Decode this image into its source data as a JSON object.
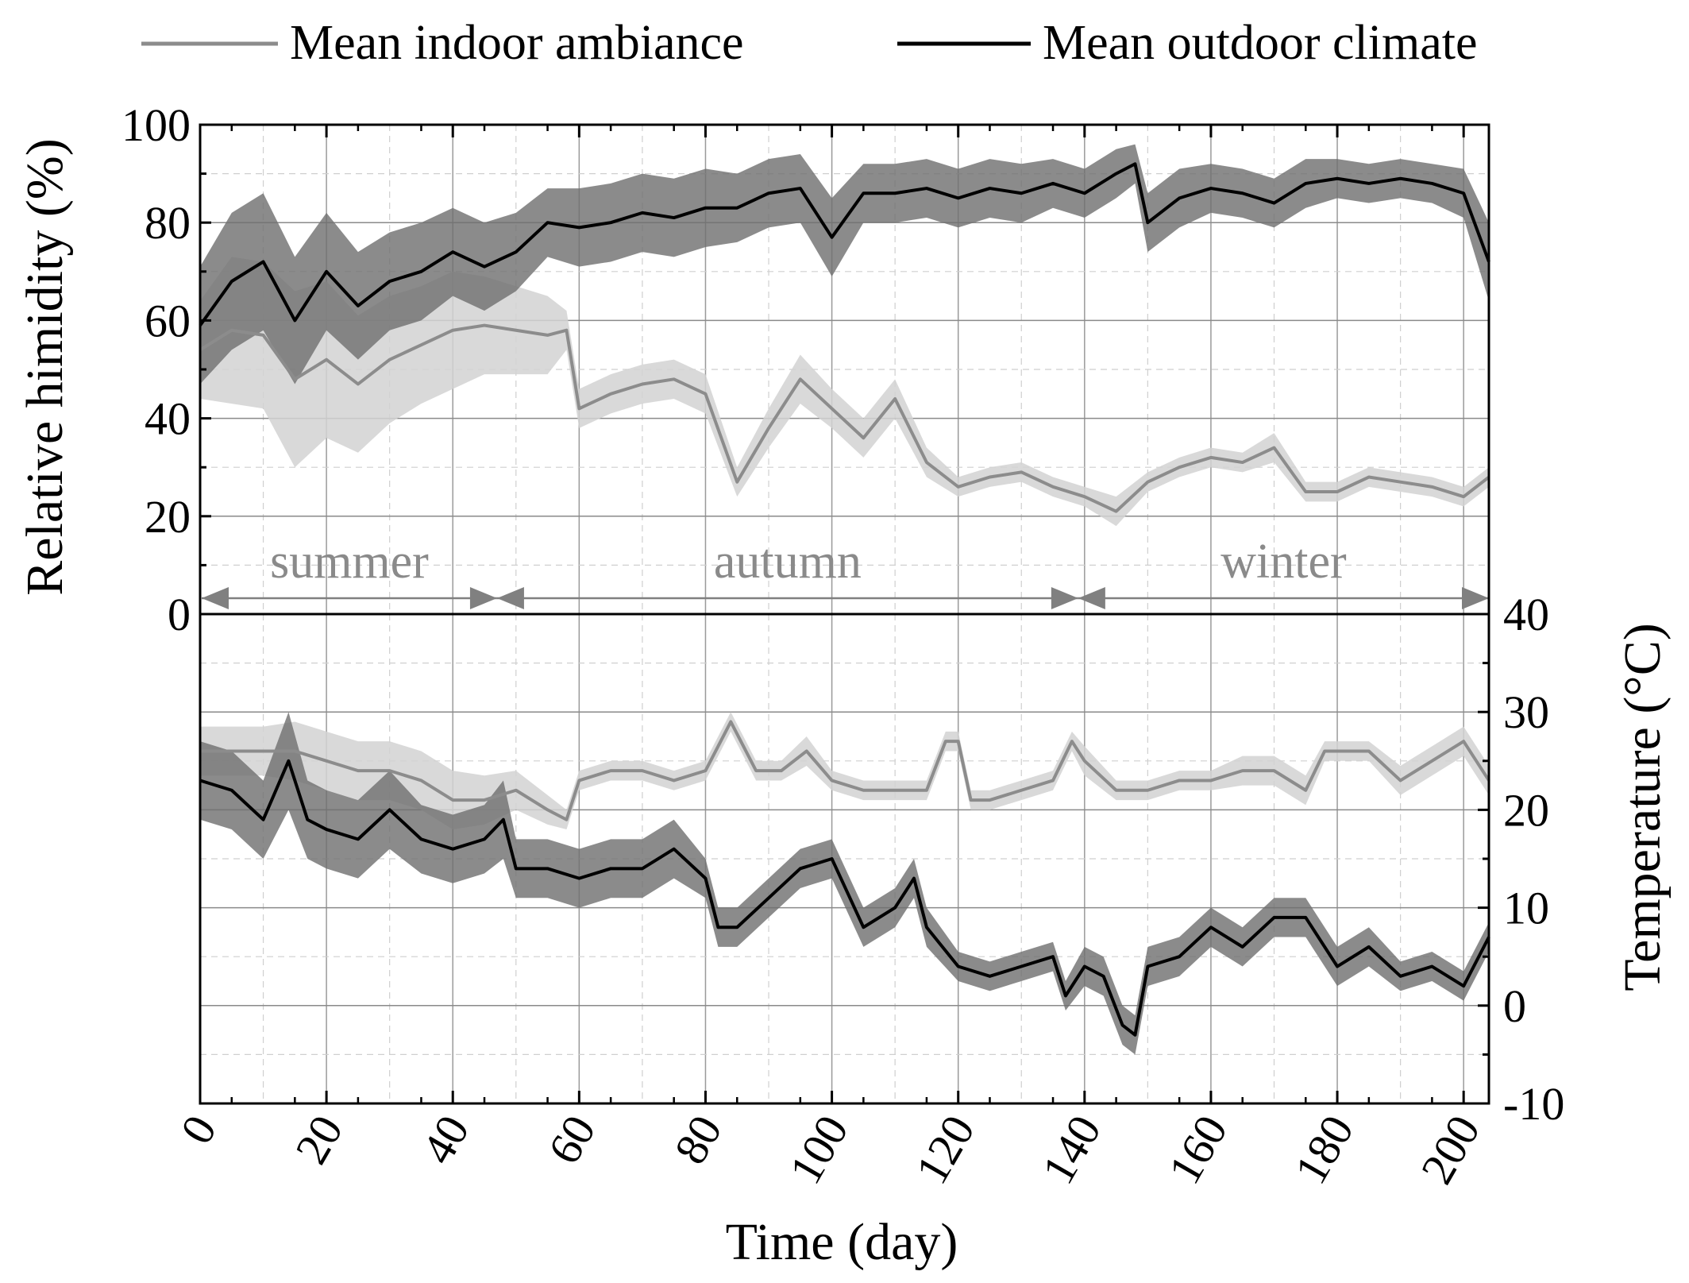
{
  "legend": {
    "placement": "top",
    "items": [
      {
        "label": "Mean indoor ambiance",
        "color": "#8c8c8c"
      },
      {
        "label": "Mean outdoor climate",
        "color": "#000000"
      }
    ]
  },
  "colors": {
    "indoor_line": "#8c8c8c",
    "indoor_band": "#d2d2d2",
    "outdoor_line": "#000000",
    "outdoor_band": "#6e6e6e",
    "season_text": "#8a8a8a",
    "season_arrow": "#808080"
  },
  "chart_data": {
    "type": "line",
    "xlabel": "Time (day)",
    "xlim": [
      0,
      204
    ],
    "x_ticks": [
      0,
      20,
      40,
      60,
      80,
      100,
      120,
      140,
      160,
      180,
      200
    ],
    "grid": true,
    "seasons": [
      {
        "label": "summer",
        "start": 0,
        "end": 47
      },
      {
        "label": "autumn",
        "start": 47,
        "end": 139
      },
      {
        "label": "winter",
        "start": 139,
        "end": 204
      }
    ],
    "panels": [
      {
        "id": "humidity",
        "ylabel": "Relative himidity (%)",
        "ylim": [
          0,
          100
        ],
        "y_ticks": [
          0,
          20,
          40,
          60,
          80,
          100
        ],
        "axis_side": "left",
        "series": [
          {
            "name": "Mean indoor ambiance",
            "x": [
              0,
              5,
              10,
              15,
              20,
              25,
              30,
              35,
              40,
              45,
              50,
              55,
              58,
              60,
              65,
              70,
              75,
              80,
              85,
              90,
              95,
              100,
              105,
              110,
              115,
              120,
              125,
              130,
              135,
              140,
              145,
              150,
              155,
              160,
              165,
              170,
              175,
              180,
              185,
              190,
              195,
              200,
              204
            ],
            "y": [
              54,
              58,
              57,
              48,
              52,
              47,
              52,
              55,
              58,
              59,
              58,
              57,
              58,
              42,
              45,
              47,
              48,
              45,
              27,
              38,
              48,
              42,
              36,
              44,
              31,
              26,
              28,
              29,
              26,
              24,
              21,
              27,
              30,
              32,
              31,
              34,
              25,
              25,
              28,
              27,
              26,
              24,
              28
            ],
            "band": [
              10,
              15,
              15,
              18,
              16,
              14,
              13,
              12,
              12,
              10,
              9,
              8,
              4,
              4,
              4,
              4,
              4,
              4,
              3,
              4,
              5,
              4,
              4,
              4,
              3,
              2,
              2,
              2,
              2,
              2,
              3,
              2,
              2,
              2,
              2,
              3,
              2,
              2,
              2,
              2,
              2,
              2,
              2
            ]
          },
          {
            "name": "Mean outdoor climate",
            "x": [
              0,
              5,
              10,
              15,
              20,
              25,
              30,
              35,
              40,
              45,
              50,
              55,
              60,
              65,
              70,
              75,
              80,
              85,
              90,
              95,
              100,
              105,
              110,
              115,
              120,
              125,
              130,
              135,
              140,
              145,
              148,
              150,
              155,
              160,
              165,
              170,
              175,
              180,
              185,
              190,
              195,
              200,
              204
            ],
            "y": [
              59,
              68,
              72,
              60,
              70,
              63,
              68,
              70,
              74,
              71,
              74,
              80,
              79,
              80,
              82,
              81,
              83,
              83,
              86,
              87,
              77,
              86,
              86,
              87,
              85,
              87,
              86,
              88,
              86,
              90,
              92,
              80,
              85,
              87,
              86,
              84,
              88,
              89,
              88,
              89,
              88,
              86,
              72
            ],
            "band": [
              12,
              14,
              14,
              13,
              12,
              11,
              10,
              10,
              9,
              9,
              8,
              7,
              8,
              8,
              8,
              8,
              8,
              7,
              7,
              7,
              8,
              6,
              6,
              6,
              6,
              6,
              6,
              5,
              5,
              5,
              4,
              6,
              6,
              5,
              5,
              5,
              5,
              4,
              4,
              4,
              4,
              5,
              8
            ]
          }
        ]
      },
      {
        "id": "temperature",
        "ylabel": "Temperature (°C)",
        "ylim": [
          -10,
          40
        ],
        "y_ticks": [
          -10,
          0,
          10,
          20,
          30,
          40
        ],
        "axis_side": "right",
        "series": [
          {
            "name": "Mean indoor ambiance",
            "x": [
              0,
              5,
              10,
              15,
              20,
              25,
              30,
              35,
              40,
              45,
              50,
              55,
              58,
              60,
              65,
              70,
              75,
              80,
              84,
              88,
              92,
              96,
              100,
              105,
              110,
              115,
              118,
              120,
              122,
              125,
              130,
              135,
              138,
              140,
              145,
              150,
              155,
              160,
              165,
              170,
              175,
              178,
              182,
              185,
              190,
              195,
              200,
              204
            ],
            "y": [
              26,
              26,
              26,
              26,
              25,
              24,
              24,
              23,
              21,
              21,
              22,
              20,
              19,
              23,
              24,
              24,
              23,
              24,
              29,
              24,
              24,
              26,
              23,
              22,
              22,
              22,
              27,
              27,
              21,
              21,
              22,
              23,
              27,
              25,
              22,
              22,
              23,
              23,
              24,
              24,
              22,
              26,
              26,
              26,
              23,
              25,
              27,
              23
            ],
            "band": [
              2.5,
              2.5,
              2.5,
              3,
              3,
              3,
              3,
              3,
              3,
              2.5,
              2,
              1.5,
              1,
              1,
              1,
              1,
              1,
              1,
              1,
              1,
              1,
              1.5,
              1,
              1,
              1,
              1,
              1,
              1,
              1,
              1,
              1,
              1,
              1,
              1.5,
              1,
              1,
              1,
              1,
              1.5,
              1.5,
              1.5,
              1,
              1,
              1,
              1.5,
              1.5,
              1.5,
              1.5
            ]
          },
          {
            "name": "Mean outdoor climate",
            "x": [
              0,
              5,
              10,
              14,
              17,
              20,
              25,
              30,
              35,
              40,
              45,
              48,
              50,
              55,
              60,
              65,
              70,
              75,
              80,
              82,
              85,
              90,
              95,
              100,
              105,
              110,
              113,
              115,
              120,
              125,
              130,
              135,
              137,
              140,
              143,
              146,
              148,
              150,
              155,
              160,
              165,
              170,
              175,
              180,
              185,
              190,
              195,
              200,
              204
            ],
            "y": [
              23,
              22,
              19,
              25,
              19,
              18,
              17,
              20,
              17,
              16,
              17,
              19,
              14,
              14,
              13,
              14,
              14,
              16,
              13,
              8,
              8,
              11,
              14,
              15,
              8,
              10,
              13,
              8,
              4,
              3,
              4,
              5,
              1,
              4,
              3,
              -2,
              -3,
              4,
              5,
              8,
              6,
              9,
              9,
              4,
              6,
              3,
              4,
              2,
              7
            ],
            "band": [
              4,
              4,
              4,
              5,
              4,
              4,
              4,
              4,
              3.5,
              3.5,
              3.5,
              4,
              3,
              3,
              3,
              3,
              3,
              3,
              2,
              2,
              2,
              2,
              2,
              2,
              2,
              2,
              2,
              2,
              1.5,
              1.5,
              1.5,
              1.5,
              1.5,
              2,
              2,
              2,
              2,
              2,
              2,
              2,
              2,
              2,
              2,
              2,
              2,
              1.5,
              1.5,
              1.5,
              1.5
            ]
          }
        ]
      }
    ]
  }
}
